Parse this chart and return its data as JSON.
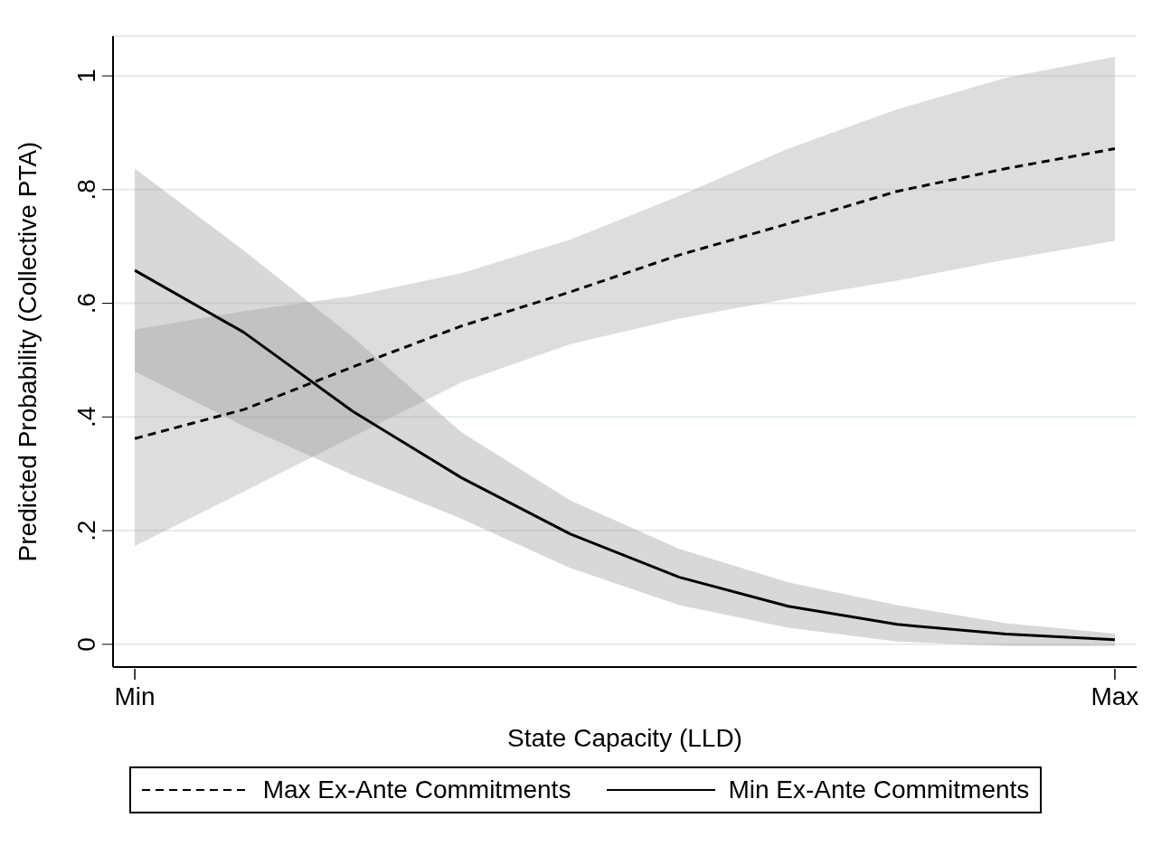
{
  "chart_data": {
    "type": "line",
    "xlabel": "State Capacity (LLD)",
    "ylabel": "Predicted Probability (Collective PTA)",
    "categories": [
      "Min",
      null,
      null,
      null,
      null,
      null,
      null,
      null,
      null,
      "Max"
    ],
    "series": [
      {
        "name": "Max Ex-Ante Commitments",
        "color": "#000000",
        "line_style": "dashed",
        "values": [
          0.362,
          0.413,
          0.488,
          0.56,
          0.62,
          0.685,
          0.74,
          0.797,
          0.837,
          0.872
        ],
        "lower": [
          0.173,
          0.269,
          0.365,
          0.461,
          0.528,
          0.573,
          0.608,
          0.64,
          0.677,
          0.71
        ],
        "upper": [
          0.554,
          0.586,
          0.613,
          0.653,
          0.712,
          0.789,
          0.872,
          0.941,
          0.997,
          1.034
        ]
      },
      {
        "name": "Min Ex-Ante Commitments",
        "color": "#000000",
        "line_style": "solid",
        "values": [
          0.658,
          0.549,
          0.41,
          0.293,
          0.194,
          0.118,
          0.067,
          0.035,
          0.018,
          0.008
        ],
        "lower": [
          0.48,
          0.384,
          0.298,
          0.221,
          0.134,
          0.069,
          0.029,
          0.005,
          -0.003,
          -0.003
        ],
        "upper": [
          0.837,
          0.693,
          0.541,
          0.373,
          0.253,
          0.168,
          0.109,
          0.069,
          0.037,
          0.019
        ]
      }
    ],
    "ylim": [
      -0.04,
      1.07
    ],
    "yticks": [
      0,
      {
        "value": 0.2,
        "label": ".2"
      },
      {
        "value": 0.4,
        "label": ".4"
      },
      {
        "value": 0.6,
        "label": ".6"
      },
      {
        "value": 0.8,
        "label": ".8"
      },
      1
    ],
    "grid": "y",
    "legend": "bottom",
    "marker": "none"
  }
}
